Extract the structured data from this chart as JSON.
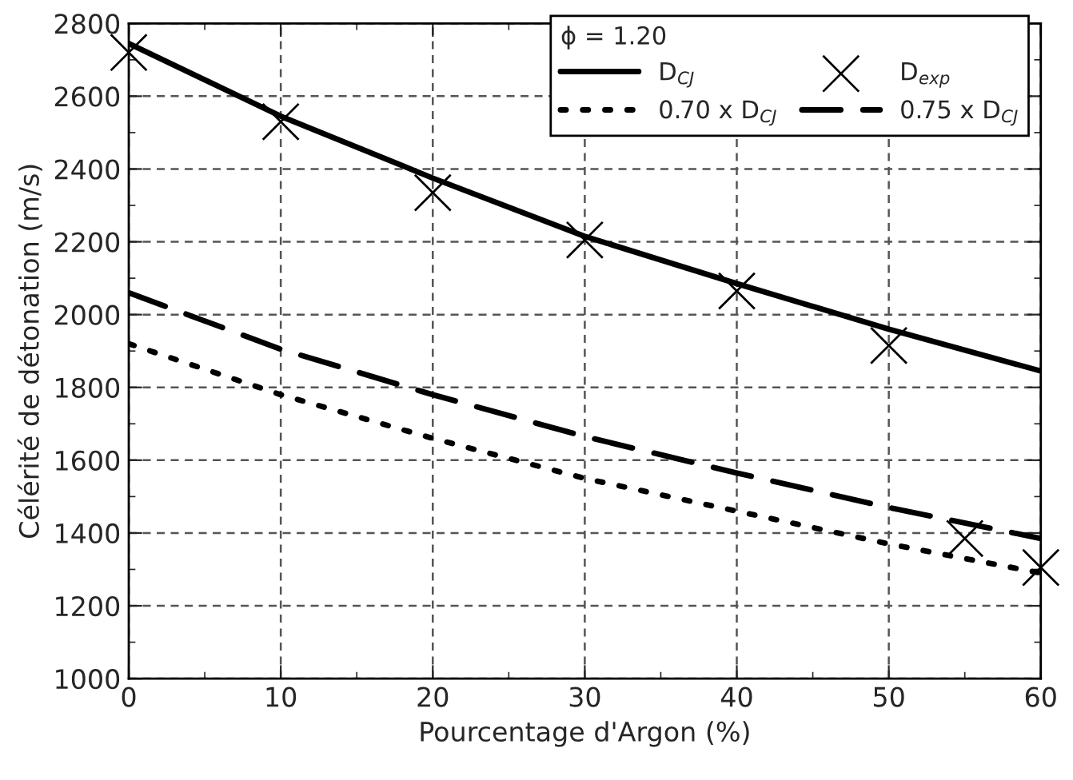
{
  "chart_data": {
    "type": "line",
    "xlabel": "Pourcentage d'Argon (%)",
    "ylabel": "Célérité de détonation (m/s)",
    "legend_title": "ϕ = 1.20",
    "xlim": [
      0,
      60
    ],
    "xticks": [
      0,
      10,
      20,
      30,
      40,
      50,
      60
    ],
    "ylim": [
      1000,
      2800
    ],
    "yticks": [
      1000,
      1200,
      1400,
      1600,
      1800,
      2000,
      2200,
      2400,
      2600,
      2800
    ],
    "grid": true,
    "legend": "top right",
    "series": [
      {
        "name": "D$_{CJ}$",
        "line_style": "solid",
        "color": "#000000",
        "x": [
          0,
          10,
          20,
          30,
          40,
          50,
          60
        ],
        "values": [
          2745,
          2545,
          2375,
          2215,
          2085,
          1960,
          1845
        ]
      },
      {
        "name": "0.70 x D$_{CJ}$",
        "line_style": "dotted",
        "color": "#000000",
        "x": [
          0,
          10,
          20,
          30,
          40,
          50,
          60
        ],
        "values": [
          1920,
          1780,
          1660,
          1550,
          1460,
          1370,
          1290
        ]
      },
      {
        "name": "D$_{exp}$",
        "type": "scatter",
        "marker": "cross",
        "color": "#000000",
        "x": [
          0,
          10,
          20,
          30,
          40,
          50,
          55,
          60
        ],
        "values": [
          2720,
          2530,
          2335,
          2205,
          2065,
          1915,
          1385,
          1305
        ]
      },
      {
        "name": "0.75 x D$_{CJ}$",
        "line_style": "dashed",
        "color": "#000000",
        "x": [
          0,
          10,
          20,
          30,
          40,
          50,
          60
        ],
        "values": [
          2060,
          1905,
          1780,
          1665,
          1565,
          1470,
          1385
        ]
      }
    ]
  }
}
